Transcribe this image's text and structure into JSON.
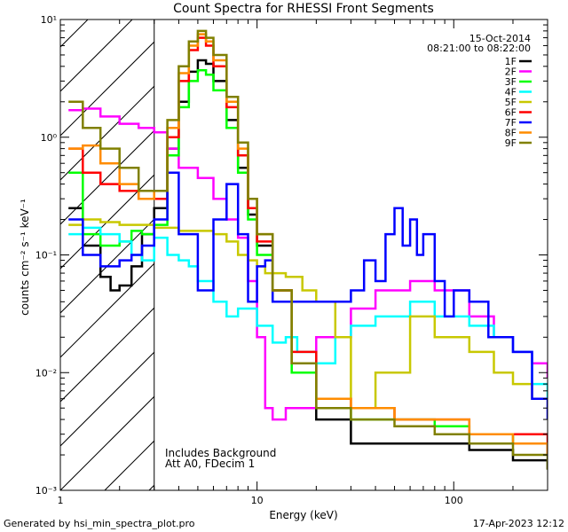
{
  "footer": {
    "generated_by": "Generated by hsi_min_spectra_plot.pro",
    "timestamp": "17-Apr-2023 12:12"
  },
  "chart_data": {
    "type": "line",
    "title": "Count Spectra for RHESSI Front Segments",
    "xlabel": "Energy (keV)",
    "ylabel": "counts cm⁻² s⁻¹ keV⁻¹",
    "xscale": "log",
    "yscale": "log",
    "xlim": [
      1,
      300
    ],
    "ylim": [
      0.001,
      10
    ],
    "x_ticks": [
      {
        "value": 1,
        "label": "1"
      },
      {
        "value": 10,
        "label": "10"
      },
      {
        "value": 100,
        "label": "100"
      }
    ],
    "y_ticks": [
      {
        "value": 0.001,
        "label": "10⁻³"
      },
      {
        "value": 0.01,
        "label": "10⁻²"
      },
      {
        "value": 0.1,
        "label": "10⁻¹"
      },
      {
        "value": 1,
        "label": "10⁰"
      },
      {
        "value": 10,
        "label": "10¹"
      }
    ],
    "date": "15-Oct-2014",
    "time_range": "08:21:00 to 08:22:00",
    "hatched_region_max_energy": 3,
    "annotations": [
      "Includes Background",
      "Att A0, FDecim 1"
    ],
    "legend_position": "top-right",
    "series": [
      {
        "name": "1F",
        "color": "#000000",
        "x": [
          1.1,
          1.3,
          1.6,
          1.8,
          2.0,
          2.3,
          2.6,
          3.0,
          3.5,
          4.0,
          4.5,
          5.0,
          5.5,
          6.0,
          7.0,
          8.0,
          9.0,
          10.0,
          12,
          15,
          20,
          30,
          50,
          80,
          120,
          200,
          300
        ],
        "y": [
          0.25,
          0.12,
          0.065,
          0.05,
          0.055,
          0.08,
          0.15,
          0.25,
          0.8,
          2.0,
          3.6,
          4.5,
          4.2,
          3.0,
          1.4,
          0.55,
          0.22,
          0.12,
          0.05,
          0.012,
          0.004,
          0.0025,
          0.0025,
          0.0025,
          0.0022,
          0.0018,
          0.0015
        ]
      },
      {
        "name": "2F",
        "color": "#ff00ff",
        "x": [
          1.1,
          1.3,
          1.6,
          2.0,
          2.5,
          3.0,
          3.5,
          4.0,
          5.0,
          6.0,
          7.0,
          8.0,
          9.0,
          10,
          11,
          12,
          14,
          20,
          30,
          40,
          60,
          80,
          120,
          160,
          200,
          250,
          300
        ],
        "y": [
          1.7,
          1.75,
          1.5,
          1.3,
          1.2,
          1.1,
          0.8,
          0.55,
          0.45,
          0.3,
          0.2,
          0.14,
          0.06,
          0.02,
          0.005,
          0.004,
          0.005,
          0.02,
          0.035,
          0.05,
          0.06,
          0.05,
          0.03,
          0.02,
          0.015,
          0.012,
          0.009
        ]
      },
      {
        "name": "3F",
        "color": "#00ff00",
        "x": [
          1.1,
          1.3,
          1.6,
          2.0,
          2.3,
          2.6,
          3.0,
          3.5,
          4.0,
          4.5,
          5.0,
          5.5,
          6.0,
          7.0,
          8.0,
          9.0,
          10,
          12,
          15,
          20,
          30,
          50,
          80,
          120,
          200,
          300
        ],
        "y": [
          0.5,
          0.15,
          0.12,
          0.13,
          0.16,
          0.15,
          0.18,
          0.7,
          1.8,
          3.0,
          3.7,
          3.4,
          2.5,
          1.2,
          0.5,
          0.2,
          0.1,
          0.04,
          0.01,
          0.005,
          0.004,
          0.004,
          0.0035,
          0.003,
          0.0025,
          0.002
        ]
      },
      {
        "name": "4F",
        "color": "#00ffff",
        "x": [
          1.1,
          1.3,
          1.6,
          2.0,
          2.3,
          2.6,
          3.0,
          3.5,
          4.0,
          4.5,
          5.0,
          6.0,
          7.0,
          8.0,
          10,
          12,
          14,
          16,
          20,
          25,
          30,
          40,
          60,
          80,
          120,
          160,
          200,
          250,
          300
        ],
        "y": [
          0.15,
          0.17,
          0.15,
          0.13,
          0.1,
          0.09,
          0.14,
          0.1,
          0.09,
          0.08,
          0.06,
          0.04,
          0.03,
          0.035,
          0.025,
          0.018,
          0.02,
          0.015,
          0.012,
          0.02,
          0.025,
          0.03,
          0.04,
          0.03,
          0.025,
          0.02,
          0.015,
          0.008,
          0.006
        ]
      },
      {
        "name": "5F",
        "color": "#c8c800",
        "x": [
          1.1,
          1.3,
          1.6,
          2.0,
          2.5,
          3.0,
          3.5,
          4.0,
          5.0,
          6.0,
          7.0,
          8.0,
          9.0,
          10,
          11,
          12,
          14,
          17,
          20,
          25,
          30,
          40,
          60,
          80,
          120,
          160,
          200,
          250,
          300
        ],
        "y": [
          0.18,
          0.2,
          0.19,
          0.18,
          0.18,
          0.17,
          0.17,
          0.16,
          0.16,
          0.15,
          0.13,
          0.1,
          0.09,
          0.08,
          0.07,
          0.07,
          0.065,
          0.05,
          0.04,
          0.02,
          0.005,
          0.01,
          0.03,
          0.02,
          0.015,
          0.01,
          0.008,
          0.006,
          0.006
        ]
      },
      {
        "name": "6F",
        "color": "#ff0000",
        "x": [
          1.1,
          1.3,
          1.6,
          2.0,
          2.5,
          3.0,
          3.5,
          4.0,
          4.5,
          5.0,
          5.5,
          6.0,
          7.0,
          8.0,
          9.0,
          10,
          12,
          15,
          20,
          30,
          50,
          80,
          120,
          200,
          300
        ],
        "y": [
          0.8,
          0.5,
          0.4,
          0.35,
          0.3,
          0.3,
          1.0,
          3.0,
          5.5,
          7.0,
          6.0,
          4.0,
          1.8,
          0.7,
          0.25,
          0.13,
          0.05,
          0.015,
          0.006,
          0.005,
          0.004,
          0.004,
          0.003,
          0.003,
          0.002
        ]
      },
      {
        "name": "7F",
        "color": "#0000ff",
        "x": [
          1.1,
          1.3,
          1.6,
          1.8,
          2.0,
          2.3,
          2.6,
          3.0,
          3.5,
          4.0,
          5.0,
          6.0,
          7.0,
          8.0,
          9.0,
          10,
          11,
          12,
          30,
          35,
          40,
          45,
          50,
          55,
          60,
          65,
          70,
          80,
          90,
          100,
          120,
          150,
          200,
          250,
          300
        ],
        "y": [
          0.2,
          0.1,
          0.08,
          0.08,
          0.09,
          0.1,
          0.12,
          0.2,
          0.5,
          0.15,
          0.05,
          0.2,
          0.4,
          0.15,
          0.04,
          0.08,
          0.09,
          0.04,
          0.05,
          0.09,
          0.06,
          0.15,
          0.25,
          0.12,
          0.2,
          0.1,
          0.15,
          0.06,
          0.03,
          0.05,
          0.04,
          0.02,
          0.015,
          0.006,
          0.004
        ]
      },
      {
        "name": "8F",
        "color": "#ff8c00",
        "x": [
          1.1,
          1.3,
          1.6,
          2.0,
          2.5,
          3.0,
          3.5,
          4.0,
          4.5,
          5.0,
          5.5,
          6.0,
          7.0,
          8.0,
          9.0,
          10,
          12,
          15,
          20,
          30,
          50,
          80,
          120,
          200,
          300
        ],
        "y": [
          0.8,
          0.85,
          0.6,
          0.4,
          0.3,
          0.35,
          1.2,
          3.5,
          6.0,
          7.5,
          6.5,
          4.5,
          2.0,
          0.8,
          0.3,
          0.15,
          0.05,
          0.012,
          0.006,
          0.005,
          0.004,
          0.004,
          0.003,
          0.0025,
          0.002
        ]
      },
      {
        "name": "9F",
        "color": "#808000",
        "x": [
          1.1,
          1.3,
          1.6,
          2.0,
          2.5,
          3.0,
          3.5,
          4.0,
          4.5,
          5.0,
          5.5,
          6.0,
          7.0,
          8.0,
          9.0,
          10,
          12,
          15,
          20,
          30,
          50,
          80,
          120,
          200,
          300
        ],
        "y": [
          2.0,
          1.2,
          0.8,
          0.55,
          0.35,
          0.35,
          1.4,
          4.0,
          6.5,
          8.0,
          7.0,
          5.0,
          2.2,
          0.9,
          0.3,
          0.15,
          0.05,
          0.012,
          0.005,
          0.004,
          0.0035,
          0.003,
          0.0025,
          0.002,
          0.0015
        ]
      }
    ]
  }
}
